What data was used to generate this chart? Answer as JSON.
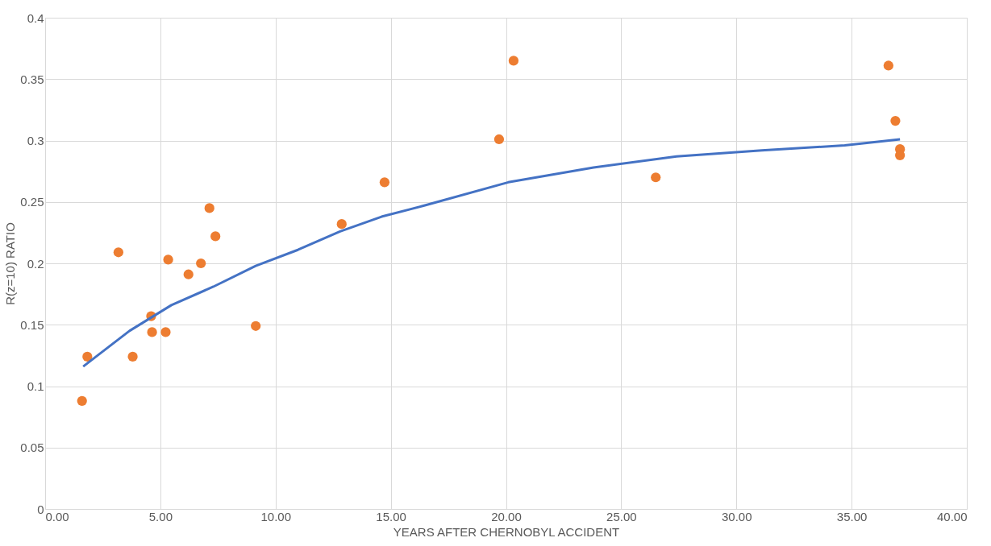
{
  "chart_data": {
    "type": "scatter",
    "xlabel": "YEARS AFTER CHERNOBYL ACCIDENT",
    "ylabel": "R(z=10) RATIO",
    "xlim": [
      0,
      40
    ],
    "ylim": [
      0,
      0.4
    ],
    "xticks": [
      {
        "value": 0,
        "label": "0.00"
      },
      {
        "value": 5,
        "label": "5.00"
      },
      {
        "value": 10,
        "label": "10.00"
      },
      {
        "value": 15,
        "label": "15.00"
      },
      {
        "value": 20,
        "label": "20.00"
      },
      {
        "value": 25,
        "label": "25.00"
      },
      {
        "value": 30,
        "label": "30.00"
      },
      {
        "value": 35,
        "label": "35.00"
      },
      {
        "value": 40,
        "label": "40.00"
      }
    ],
    "yticks": [
      0,
      0.05,
      0.1,
      0.15,
      0.2,
      0.25,
      0.3,
      0.35,
      0.4
    ],
    "grid": true,
    "legend": false,
    "marker": "circle",
    "series": [
      {
        "color": "#ed7d31",
        "x": [
          1.6,
          1.83,
          3.18,
          3.8,
          4.6,
          4.64,
          5.23,
          5.34,
          6.22,
          6.76,
          7.13,
          7.39,
          9.14,
          12.87,
          14.73,
          19.7,
          20.33,
          26.5,
          36.6,
          36.9,
          37.1,
          37.1
        ],
        "values": [
          0.088,
          0.124,
          0.209,
          0.124,
          0.157,
          0.144,
          0.144,
          0.203,
          0.191,
          0.2,
          0.245,
          0.222,
          0.149,
          0.232,
          0.266,
          0.301,
          0.365,
          0.27,
          0.361,
          0.316,
          0.293,
          0.288
        ]
      },
      {
        "type": "line",
        "color": "#4472c4",
        "line_style": "solid",
        "marker": "none",
        "x": [
          1.65,
          3.66,
          5.48,
          7.3,
          9.14,
          10.97,
          12.8,
          14.6,
          16.45,
          20.1,
          23.8,
          27.4,
          31.1,
          34.7,
          37.1
        ],
        "values": [
          0.116,
          0.145,
          0.166,
          0.181,
          0.198,
          0.211,
          0.226,
          0.238,
          0.247,
          0.266,
          0.278,
          0.287,
          0.292,
          0.296,
          0.301
        ]
      }
    ]
  }
}
